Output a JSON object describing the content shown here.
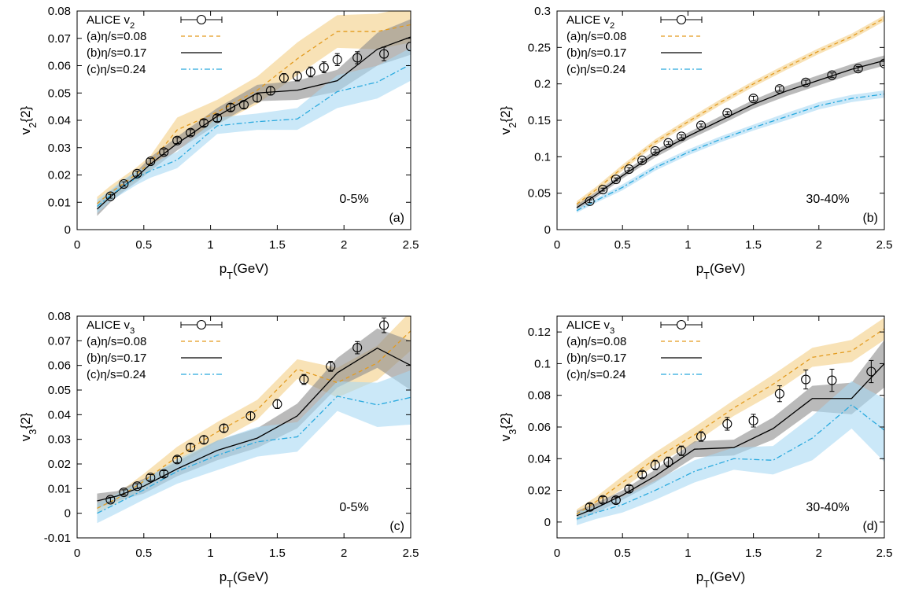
{
  "colors": {
    "data": "#000000",
    "a_line": "#e39b1f",
    "a_band": "#f3cf86",
    "b_line": "#000000",
    "b_band": "#8c8c8c",
    "c_line": "#29a9de",
    "c_band": "#a9d9f4"
  },
  "marker": "open-circle",
  "chart_data": [
    {
      "type": "line",
      "panel_label": "(a)",
      "centrality": "0-5%",
      "xlabel": "p_T(GeV)",
      "ylabel": "v_2{2}",
      "xlim": [
        0,
        2.5
      ],
      "ylim": [
        0,
        0.08
      ],
      "xticks": [
        "0",
        "0.5",
        "1",
        "1.5",
        "2",
        "2.5"
      ],
      "yticks": [
        "0",
        "0.01",
        "0.02",
        "0.03",
        "0.04",
        "0.05",
        "0.06",
        "0.07",
        "0.08"
      ],
      "legend_position": "top-left",
      "data_label": "ALICE v_2",
      "data": {
        "x": [
          0.25,
          0.35,
          0.45,
          0.55,
          0.65,
          0.75,
          0.85,
          0.95,
          1.05,
          1.15,
          1.25,
          1.35,
          1.45,
          1.55,
          1.65,
          1.75,
          1.85,
          1.95,
          2.1,
          2.3,
          2.5
        ],
        "y": [
          0.0122,
          0.0167,
          0.0205,
          0.025,
          0.0284,
          0.0326,
          0.0355,
          0.039,
          0.0408,
          0.0447,
          0.0457,
          0.0482,
          0.0508,
          0.0555,
          0.0561,
          0.0577,
          0.0594,
          0.0622,
          0.0629,
          0.0643,
          0.067
        ],
        "err": [
          0.0007,
          0.0008,
          0.0009,
          0.001,
          0.001,
          0.0011,
          0.0011,
          0.0012,
          0.0012,
          0.0013,
          0.0013,
          0.0014,
          0.0015,
          0.0016,
          0.0017,
          0.0018,
          0.002,
          0.0022,
          0.0022,
          0.0025,
          0.0015
        ]
      },
      "series": [
        {
          "name": "(a)η/s=0.08",
          "style": "dashed",
          "x": [
            0.15,
            0.25,
            0.35,
            0.45,
            0.55,
            0.75,
            1.05,
            1.35,
            1.65,
            1.95,
            2.25,
            2.5
          ],
          "y": [
            0.0095,
            0.0135,
            0.017,
            0.0205,
            0.0245,
            0.0365,
            0.043,
            0.051,
            0.0625,
            0.0725,
            0.0725,
            0.075
          ],
          "band": [
            0.0025,
            0.0025,
            0.0025,
            0.0025,
            0.0025,
            0.0045,
            0.0045,
            0.005,
            0.006,
            0.006,
            0.0065,
            0.0065
          ]
        },
        {
          "name": "(b)η/s=0.17",
          "style": "solid",
          "x": [
            0.15,
            0.25,
            0.35,
            0.45,
            0.55,
            0.75,
            1.05,
            1.35,
            1.65,
            1.95,
            2.25,
            2.5
          ],
          "y": [
            0.0075,
            0.012,
            0.016,
            0.0195,
            0.024,
            0.0315,
            0.0415,
            0.05,
            0.051,
            0.0545,
            0.066,
            0.0705
          ],
          "band": [
            0.0025,
            0.002,
            0.002,
            0.002,
            0.0025,
            0.0025,
            0.003,
            0.003,
            0.0035,
            0.004,
            0.006,
            0.0065
          ]
        },
        {
          "name": "(c)η/s=0.24",
          "style": "dash-dot",
          "x": [
            0.15,
            0.25,
            0.35,
            0.45,
            0.55,
            0.75,
            1.05,
            1.35,
            1.65,
            1.95,
            2.25,
            2.5
          ],
          "y": [
            0.0085,
            0.0125,
            0.016,
            0.019,
            0.0215,
            0.0255,
            0.038,
            0.0395,
            0.0405,
            0.0505,
            0.054,
            0.0605
          ],
          "band": [
            0.0025,
            0.002,
            0.0025,
            0.0025,
            0.0025,
            0.003,
            0.003,
            0.003,
            0.004,
            0.006,
            0.006,
            0.006
          ]
        }
      ]
    },
    {
      "type": "line",
      "panel_label": "(b)",
      "centrality": "30-40%",
      "xlabel": "p_T(GeV)",
      "ylabel": "v_2{2}",
      "xlim": [
        0,
        2.5
      ],
      "ylim": [
        0,
        0.3
      ],
      "xticks": [
        "0",
        "0.5",
        "1",
        "1.5",
        "2",
        "2.5"
      ],
      "yticks": [
        "0",
        "0.05",
        "0.1",
        "0.15",
        "0.2",
        "0.25",
        "0.3"
      ],
      "legend_position": "top-left",
      "data_label": "ALICE v_2",
      "data": {
        "x": [
          0.25,
          0.35,
          0.45,
          0.55,
          0.65,
          0.75,
          0.85,
          0.95,
          1.1,
          1.3,
          1.5,
          1.7,
          1.9,
          2.1,
          2.3,
          2.5
        ],
        "y": [
          0.039,
          0.055,
          0.069,
          0.083,
          0.095,
          0.108,
          0.119,
          0.128,
          0.143,
          0.16,
          0.18,
          0.193,
          0.202,
          0.212,
          0.221,
          0.228
        ],
        "err": [
          0.002,
          0.002,
          0.002,
          0.002,
          0.002,
          0.002,
          0.002,
          0.002,
          0.002,
          0.002,
          0.003,
          0.003,
          0.003,
          0.003,
          0.003,
          0.003
        ]
      },
      "series": [
        {
          "name": "(a)η/s=0.08",
          "style": "dashed",
          "x": [
            0.15,
            0.3,
            0.5,
            0.75,
            1.0,
            1.25,
            1.5,
            1.75,
            2.0,
            2.25,
            2.5
          ],
          "y": [
            0.035,
            0.055,
            0.085,
            0.12,
            0.148,
            0.175,
            0.2,
            0.223,
            0.245,
            0.265,
            0.29
          ],
          "band": [
            0.004,
            0.004,
            0.004,
            0.004,
            0.004,
            0.004,
            0.004,
            0.004,
            0.004,
            0.004,
            0.004
          ]
        },
        {
          "name": "(b)η/s=0.17",
          "style": "solid",
          "x": [
            0.15,
            0.3,
            0.5,
            0.75,
            1.0,
            1.25,
            1.5,
            1.75,
            2.0,
            2.25,
            2.5
          ],
          "y": [
            0.03,
            0.048,
            0.074,
            0.104,
            0.128,
            0.15,
            0.172,
            0.19,
            0.205,
            0.22,
            0.232
          ],
          "band": [
            0.004,
            0.004,
            0.004,
            0.005,
            0.005,
            0.006,
            0.006,
            0.007,
            0.007,
            0.007,
            0.007
          ]
        },
        {
          "name": "(c)η/s=0.24",
          "style": "dash-dot",
          "x": [
            0.15,
            0.3,
            0.5,
            0.75,
            1.0,
            1.25,
            1.5,
            1.75,
            2.0,
            2.25,
            2.5
          ],
          "y": [
            0.026,
            0.04,
            0.058,
            0.085,
            0.106,
            0.124,
            0.14,
            0.155,
            0.17,
            0.18,
            0.186
          ],
          "band": [
            0.003,
            0.003,
            0.004,
            0.004,
            0.004,
            0.004,
            0.004,
            0.005,
            0.005,
            0.005,
            0.005
          ]
        }
      ]
    },
    {
      "type": "line",
      "panel_label": "(c)",
      "centrality": "0-5%",
      "xlabel": "p_T(GeV)",
      "ylabel": "v_3{2}",
      "xlim": [
        0,
        2.5
      ],
      "ylim": [
        -0.01,
        0.08
      ],
      "xticks": [
        "0",
        "0.5",
        "1",
        "1.5",
        "2",
        "2.5"
      ],
      "yticks": [
        "-0.01",
        "0",
        "0.01",
        "0.02",
        "0.03",
        "0.04",
        "0.05",
        "0.06",
        "0.07",
        "0.08"
      ],
      "legend_position": "top-left",
      "data_label": "ALICE v_3",
      "data": {
        "x": [
          0.25,
          0.35,
          0.45,
          0.55,
          0.65,
          0.75,
          0.85,
          0.95,
          1.1,
          1.3,
          1.5,
          1.7,
          1.9,
          2.1,
          2.3
        ],
        "y": [
          0.0055,
          0.0085,
          0.011,
          0.0145,
          0.016,
          0.0218,
          0.0267,
          0.0298,
          0.0345,
          0.0395,
          0.0443,
          0.0543,
          0.0596,
          0.0672,
          0.0763
        ],
        "err": [
          0.001,
          0.001,
          0.001,
          0.0012,
          0.0013,
          0.0013,
          0.0014,
          0.0015,
          0.0015,
          0.0016,
          0.0018,
          0.002,
          0.002,
          0.0025,
          0.003
        ]
      },
      "series": [
        {
          "name": "(a)η/s=0.08",
          "style": "dashed",
          "x": [
            0.15,
            0.3,
            0.5,
            0.75,
            1.05,
            1.35,
            1.65,
            1.95,
            2.25,
            2.5
          ],
          "y": [
            0.002,
            0.006,
            0.013,
            0.023,
            0.033,
            0.042,
            0.0585,
            0.053,
            0.061,
            0.074
          ],
          "band": [
            0.002,
            0.002,
            0.003,
            0.004,
            0.004,
            0.004,
            0.004,
            0.006,
            0.007,
            0.008
          ]
        },
        {
          "name": "(b)η/s=0.17",
          "style": "solid",
          "x": [
            0.15,
            0.3,
            0.5,
            0.75,
            1.05,
            1.35,
            1.65,
            1.95,
            2.25,
            2.5
          ],
          "y": [
            0.005,
            0.007,
            0.011,
            0.018,
            0.0255,
            0.0305,
            0.0395,
            0.057,
            0.067,
            0.06
          ],
          "band": [
            0.003,
            0.002,
            0.003,
            0.003,
            0.004,
            0.004,
            0.005,
            0.006,
            0.008,
            0.01
          ]
        },
        {
          "name": "(c)η/s=0.24",
          "style": "dash-dot",
          "x": [
            0.15,
            0.3,
            0.5,
            0.75,
            1.05,
            1.35,
            1.65,
            1.95,
            2.25,
            2.5
          ],
          "y": [
            0.0,
            0.004,
            0.0095,
            0.017,
            0.0235,
            0.029,
            0.031,
            0.0475,
            0.044,
            0.047
          ],
          "band": [
            0.004,
            0.004,
            0.004,
            0.005,
            0.006,
            0.006,
            0.006,
            0.006,
            0.009,
            0.011
          ]
        }
      ]
    },
    {
      "type": "line",
      "panel_label": "(d)",
      "centrality": "30-40%",
      "xlabel": "p_T(GeV)",
      "ylabel": "v_3{2}",
      "xlim": [
        0,
        2.5
      ],
      "ylim": [
        -0.01,
        0.13
      ],
      "xticks": [
        "0",
        "0.5",
        "1",
        "1.5",
        "2",
        "2.5"
      ],
      "yticks": [
        "0",
        "0.02",
        "0.04",
        "0.06",
        "0.08",
        "0.1",
        "0.12"
      ],
      "legend_position": "top-left",
      "data_label": "ALICE v_3",
      "data": {
        "x": [
          0.25,
          0.35,
          0.45,
          0.55,
          0.65,
          0.75,
          0.85,
          0.95,
          1.1,
          1.3,
          1.5,
          1.7,
          1.9,
          2.1,
          2.4
        ],
        "y": [
          0.0095,
          0.014,
          0.0138,
          0.021,
          0.03,
          0.036,
          0.038,
          0.045,
          0.054,
          0.062,
          0.064,
          0.081,
          0.09,
          0.0895,
          0.095
        ],
        "err": [
          0.002,
          0.002,
          0.002,
          0.002,
          0.002,
          0.003,
          0.003,
          0.003,
          0.003,
          0.004,
          0.004,
          0.005,
          0.006,
          0.007,
          0.007
        ]
      },
      "series": [
        {
          "name": "(a)η/s=0.08",
          "style": "dashed",
          "x": [
            0.15,
            0.3,
            0.5,
            0.75,
            1.05,
            1.35,
            1.65,
            1.95,
            2.25,
            2.5
          ],
          "y": [
            0.005,
            0.013,
            0.025,
            0.04,
            0.055,
            0.072,
            0.087,
            0.104,
            0.108,
            0.122
          ],
          "band": [
            0.003,
            0.003,
            0.004,
            0.004,
            0.005,
            0.005,
            0.006,
            0.006,
            0.007,
            0.007
          ]
        },
        {
          "name": "(b)η/s=0.17",
          "style": "solid",
          "x": [
            0.15,
            0.3,
            0.5,
            0.75,
            1.05,
            1.35,
            1.65,
            1.95,
            2.25,
            2.5
          ],
          "y": [
            0.004,
            0.009,
            0.017,
            0.029,
            0.046,
            0.047,
            0.059,
            0.078,
            0.078,
            0.1
          ],
          "band": [
            0.003,
            0.003,
            0.003,
            0.004,
            0.005,
            0.005,
            0.007,
            0.008,
            0.01,
            0.015
          ]
        },
        {
          "name": "(c)η/s=0.24",
          "style": "dash-dot",
          "x": [
            0.15,
            0.3,
            0.5,
            0.75,
            1.05,
            1.35,
            1.65,
            1.95,
            2.25,
            2.5
          ],
          "y": [
            0.002,
            0.006,
            0.011,
            0.02,
            0.032,
            0.04,
            0.039,
            0.053,
            0.074,
            0.058
          ],
          "band": [
            0.004,
            0.004,
            0.005,
            0.006,
            0.007,
            0.007,
            0.009,
            0.014,
            0.015,
            0.02
          ]
        }
      ]
    }
  ]
}
